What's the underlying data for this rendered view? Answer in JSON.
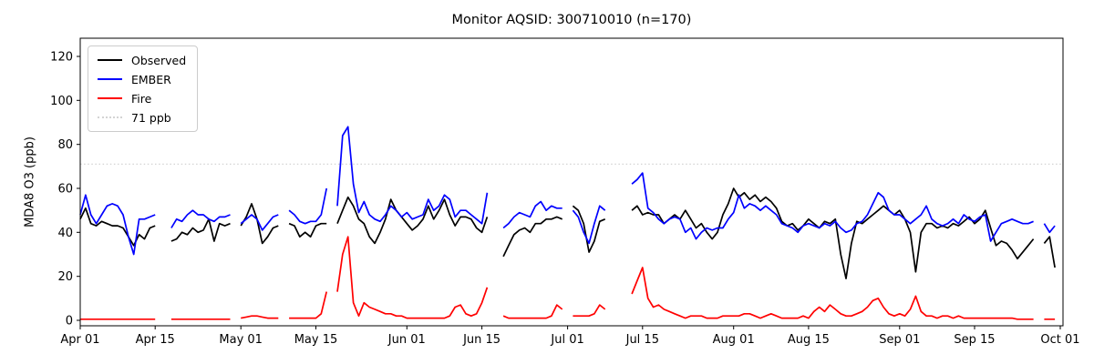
{
  "chart_data": {
    "type": "line",
    "title": "Monitor AQSID: 300710010 (n=170)",
    "xlabel": "",
    "ylabel": "MDA8 O3 (ppb)",
    "ylim": [
      0,
      120
    ],
    "yticks": [
      0,
      20,
      40,
      60,
      80,
      100,
      120
    ],
    "grid": false,
    "legend_position": "upper left",
    "x_start": "Apr 01",
    "x_end": "Oct 01",
    "n_days": 183,
    "n_obs": 170,
    "x_ticks": [
      {
        "label": "Apr 01",
        "day": 0
      },
      {
        "label": "Apr 15",
        "day": 14
      },
      {
        "label": "May 01",
        "day": 30
      },
      {
        "label": "May 15",
        "day": 44
      },
      {
        "label": "Jun 01",
        "day": 61
      },
      {
        "label": "Jun 15",
        "day": 75
      },
      {
        "label": "Jul 01",
        "day": 91
      },
      {
        "label": "Jul 15",
        "day": 105
      },
      {
        "label": "Aug 01",
        "day": 122
      },
      {
        "label": "Aug 15",
        "day": 136
      },
      {
        "label": "Sep 01",
        "day": 153
      },
      {
        "label": "Sep 15",
        "day": 167
      },
      {
        "label": "Oct 01",
        "day": 183
      }
    ],
    "threshold": {
      "value": 71,
      "label": "71 ppb",
      "color": "#d3d3d3",
      "style": "dotted"
    },
    "legend": [
      {
        "label": "Observed",
        "color": "#000000",
        "style": "solid"
      },
      {
        "label": "EMBER",
        "color": "#0000ff",
        "style": "solid"
      },
      {
        "label": "Fire",
        "color": "#ff0000",
        "style": "solid"
      },
      {
        "label": "71 ppb",
        "color": "#d3d3d3",
        "style": "dotted"
      }
    ],
    "series": [
      {
        "name": "Observed",
        "color": "#000000",
        "values": [
          46,
          51,
          44,
          43,
          45,
          44,
          43,
          43,
          42,
          38,
          34,
          39,
          37,
          42,
          43,
          null,
          null,
          36,
          37,
          40,
          39,
          42,
          40,
          41,
          46,
          36,
          44,
          43,
          44,
          null,
          43,
          47,
          53,
          46,
          35,
          38,
          42,
          43,
          null,
          44,
          43,
          38,
          40,
          38,
          43,
          44,
          44,
          null,
          44,
          50,
          56,
          52,
          46,
          44,
          38,
          35,
          40,
          46,
          55,
          50,
          47,
          44,
          41,
          43,
          46,
          52,
          46,
          50,
          55,
          48,
          43,
          47,
          47,
          46,
          42,
          40,
          47,
          null,
          null,
          29,
          34,
          39,
          41,
          42,
          40,
          44,
          44,
          46,
          46,
          47,
          46,
          null,
          52,
          50,
          44,
          31,
          36,
          45,
          46,
          null,
          null,
          null,
          null,
          50,
          52,
          48,
          49,
          48,
          48,
          44,
          46,
          48,
          46,
          50,
          46,
          42,
          44,
          40,
          37,
          40,
          48,
          53,
          60,
          56,
          58,
          55,
          57,
          54,
          56,
          54,
          51,
          45,
          43,
          44,
          41,
          43,
          46,
          44,
          42,
          45,
          44,
          46,
          30,
          19,
          35,
          45,
          44,
          46,
          48,
          50,
          52,
          50,
          48,
          50,
          46,
          40,
          22,
          40,
          44,
          44,
          42,
          43,
          42,
          44,
          43,
          45,
          47,
          44,
          46,
          50,
          42,
          34,
          36,
          35,
          32,
          28,
          31,
          34,
          37,
          null,
          35,
          38,
          24
        ]
      },
      {
        "name": "EMBER",
        "color": "#0000ff",
        "values": [
          48,
          57,
          48,
          44,
          48,
          52,
          53,
          52,
          48,
          38,
          30,
          46,
          46,
          47,
          48,
          null,
          null,
          42,
          46,
          45,
          48,
          50,
          48,
          48,
          46,
          45,
          47,
          47,
          48,
          null,
          44,
          46,
          48,
          46,
          41,
          44,
          47,
          48,
          null,
          50,
          48,
          45,
          44,
          45,
          45,
          48,
          60,
          null,
          52,
          84,
          88,
          62,
          49,
          54,
          48,
          46,
          45,
          48,
          52,
          50,
          47,
          49,
          46,
          47,
          48,
          55,
          50,
          52,
          57,
          55,
          47,
          50,
          50,
          48,
          46,
          44,
          58,
          null,
          null,
          42,
          44,
          47,
          49,
          48,
          47,
          52,
          54,
          50,
          52,
          51,
          51,
          null,
          50,
          47,
          40,
          35,
          44,
          52,
          50,
          null,
          null,
          null,
          null,
          62,
          64,
          67,
          51,
          49,
          46,
          44,
          46,
          47,
          46,
          40,
          42,
          37,
          40,
          42,
          41,
          42,
          42,
          46,
          49,
          57,
          51,
          53,
          52,
          50,
          52,
          50,
          48,
          44,
          43,
          42,
          40,
          43,
          44,
          43,
          42,
          44,
          43,
          45,
          42,
          40,
          41,
          44,
          45,
          48,
          53,
          58,
          56,
          50,
          48,
          48,
          46,
          44,
          46,
          48,
          52,
          46,
          44,
          43,
          44,
          46,
          44,
          48,
          46,
          45,
          47,
          48,
          36,
          40,
          44,
          45,
          46,
          45,
          44,
          44,
          45,
          null,
          44,
          40,
          43
        ]
      },
      {
        "name": "Fire",
        "color": "#ff0000",
        "values": [
          0.5,
          0.5,
          0.5,
          0.5,
          0.5,
          0.5,
          0.5,
          0.5,
          0.5,
          0.5,
          0.5,
          0.5,
          0.5,
          0.5,
          0.5,
          null,
          null,
          0.5,
          0.5,
          0.5,
          0.5,
          0.5,
          0.5,
          0.5,
          0.5,
          0.5,
          0.5,
          0.5,
          0.5,
          null,
          1,
          1.5,
          2,
          2,
          1.5,
          1,
          1,
          1,
          null,
          1,
          1,
          1,
          1,
          1,
          1,
          3,
          13,
          null,
          13,
          30,
          38,
          8,
          2,
          8,
          6,
          5,
          4,
          3,
          3,
          2,
          2,
          1,
          1,
          1,
          1,
          1,
          1,
          1,
          1,
          2,
          6,
          7,
          3,
          2,
          3,
          8,
          15,
          null,
          null,
          2,
          1,
          1,
          1,
          1,
          1,
          1,
          1,
          1,
          2,
          7,
          5,
          null,
          2,
          2,
          2,
          2,
          3,
          7,
          5,
          null,
          null,
          null,
          null,
          12,
          18,
          24,
          10,
          6,
          7,
          5,
          4,
          3,
          2,
          1,
          2,
          2,
          2,
          1,
          1,
          1,
          2,
          2,
          2,
          2,
          3,
          3,
          2,
          1,
          2,
          3,
          2,
          1,
          1,
          1,
          1,
          2,
          1,
          4,
          6,
          4,
          7,
          5,
          3,
          2,
          2,
          3,
          4,
          6,
          9,
          10,
          6,
          3,
          2,
          3,
          2,
          5,
          11,
          4,
          2,
          2,
          1,
          2,
          2,
          1,
          2,
          1,
          1,
          1,
          1,
          1,
          1,
          1,
          1,
          1,
          1,
          0.5,
          0.5,
          0.5,
          0.5,
          null,
          0.5,
          0.5,
          0.5
        ]
      }
    ]
  }
}
